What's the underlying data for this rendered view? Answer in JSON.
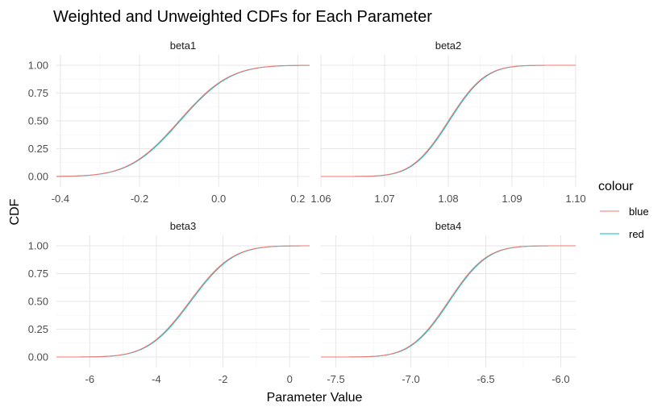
{
  "chart_data": {
    "type": "line",
    "title": "Weighted and Unweighted CDFs for Each Parameter",
    "xlabel": "Parameter Value",
    "ylabel": "CDF",
    "legend": {
      "title": "colour",
      "placement": "right",
      "entries": [
        {
          "label": "blue",
          "color": "#F8766D"
        },
        {
          "label": "red",
          "color": "#00BFC4"
        }
      ]
    },
    "grid": true,
    "y_ticks": [
      0.0,
      0.25,
      0.5,
      0.75,
      1.0
    ],
    "y_tick_labels": [
      "0.00",
      "0.25",
      "0.50",
      "0.75",
      "1.00"
    ],
    "ylim": [
      0,
      1
    ],
    "panels": [
      {
        "name": "beta1",
        "xlim": [
          -0.41,
          0.23
        ],
        "x_ticks": [
          -0.4,
          -0.2,
          0.0,
          0.2
        ],
        "x_tick_labels": [
          "-0.4",
          "-0.2",
          "0.0",
          "0.2"
        ],
        "mean": -0.1,
        "sd": 0.1,
        "series": [
          {
            "name": "blue",
            "x": [
              -0.41,
              -0.35,
              -0.3,
              -0.25,
              -0.2,
              -0.15,
              -0.1,
              -0.05,
              0.0,
              0.05,
              0.1,
              0.15,
              0.23
            ],
            "y": [
              0.001,
              0.006,
              0.023,
              0.067,
              0.159,
              0.309,
              0.5,
              0.691,
              0.841,
              0.933,
              0.977,
              0.994,
              1.0
            ]
          },
          {
            "name": "red",
            "x": [
              -0.41,
              -0.35,
              -0.3,
              -0.25,
              -0.2,
              -0.15,
              -0.1,
              -0.05,
              0.0,
              0.05,
              0.1,
              0.15,
              0.23
            ],
            "y": [
              0.001,
              0.005,
              0.02,
              0.061,
              0.15,
              0.297,
              0.488,
              0.68,
              0.834,
              0.929,
              0.975,
              0.993,
              1.0
            ]
          }
        ]
      },
      {
        "name": "beta2",
        "xlim": [
          1.06,
          1.1
        ],
        "x_ticks": [
          1.06,
          1.07,
          1.08,
          1.09,
          1.1
        ],
        "x_tick_labels": [
          "1.06",
          "1.07",
          "1.08",
          "1.09",
          "1.10"
        ],
        "mean": 1.08,
        "sd": 0.0045,
        "series": [
          {
            "name": "blue",
            "x": [
              1.06,
              1.065,
              1.07,
              1.073,
              1.076,
              1.078,
              1.08,
              1.082,
              1.084,
              1.087,
              1.09,
              1.094,
              1.1
            ],
            "y": [
              0.0,
              0.0,
              0.013,
              0.06,
              0.187,
              0.329,
              0.5,
              0.671,
              0.813,
              0.94,
              0.987,
              0.999,
              1.0
            ]
          },
          {
            "name": "red",
            "x": [
              1.06,
              1.065,
              1.07,
              1.073,
              1.076,
              1.078,
              1.08,
              1.082,
              1.084,
              1.087,
              1.09,
              1.094,
              1.1
            ],
            "y": [
              0.0,
              0.0,
              0.01,
              0.052,
              0.172,
              0.312,
              0.484,
              0.657,
              0.802,
              0.935,
              0.985,
              0.999,
              1.0
            ]
          }
        ]
      },
      {
        "name": "beta3",
        "xlim": [
          -7.0,
          0.6
        ],
        "x_ticks": [
          -6,
          -4,
          -2,
          0
        ],
        "x_tick_labels": [
          "-6",
          "-4",
          "-2",
          "0"
        ],
        "mean": -3.0,
        "sd": 1.0,
        "series": [
          {
            "name": "blue",
            "x": [
              -7.0,
              -6.0,
              -5.0,
              -4.5,
              -4.0,
              -3.5,
              -3.0,
              -2.5,
              -2.0,
              -1.5,
              -1.0,
              0.0,
              0.6
            ],
            "y": [
              0.0,
              0.001,
              0.023,
              0.067,
              0.159,
              0.309,
              0.5,
              0.691,
              0.841,
              0.933,
              0.977,
              0.999,
              1.0
            ]
          },
          {
            "name": "red",
            "x": [
              -7.0,
              -6.0,
              -5.0,
              -4.5,
              -4.0,
              -3.5,
              -3.0,
              -2.5,
              -2.0,
              -1.5,
              -1.0,
              0.0,
              0.6
            ],
            "y": [
              0.0,
              0.001,
              0.02,
              0.06,
              0.148,
              0.295,
              0.485,
              0.677,
              0.832,
              0.928,
              0.975,
              0.999,
              1.0
            ]
          }
        ]
      },
      {
        "name": "beta4",
        "xlim": [
          -7.6,
          -5.9
        ],
        "x_ticks": [
          -7.5,
          -7.0,
          -6.5,
          -6.0
        ],
        "x_tick_labels": [
          "-7.5",
          "-7.0",
          "-6.5",
          "-6.0"
        ],
        "mean": -6.75,
        "sd": 0.2,
        "series": [
          {
            "name": "blue",
            "x": [
              -7.6,
              -7.4,
              -7.2,
              -7.1,
              -7.0,
              -6.9,
              -6.75,
              -6.6,
              -6.5,
              -6.4,
              -6.3,
              -6.2,
              -5.9
            ],
            "y": [
              0.0,
              0.001,
              0.012,
              0.04,
              0.106,
              0.227,
              0.5,
              0.773,
              0.894,
              0.96,
              0.988,
              0.997,
              1.0
            ]
          },
          {
            "name": "red",
            "x": [
              -7.6,
              -7.4,
              -7.2,
              -7.1,
              -7.0,
              -6.9,
              -6.75,
              -6.6,
              -6.5,
              -6.4,
              -6.3,
              -6.2,
              -5.9
            ],
            "y": [
              0.0,
              0.001,
              0.01,
              0.035,
              0.097,
              0.214,
              0.485,
              0.761,
              0.887,
              0.956,
              0.986,
              0.997,
              1.0
            ]
          }
        ]
      }
    ]
  }
}
